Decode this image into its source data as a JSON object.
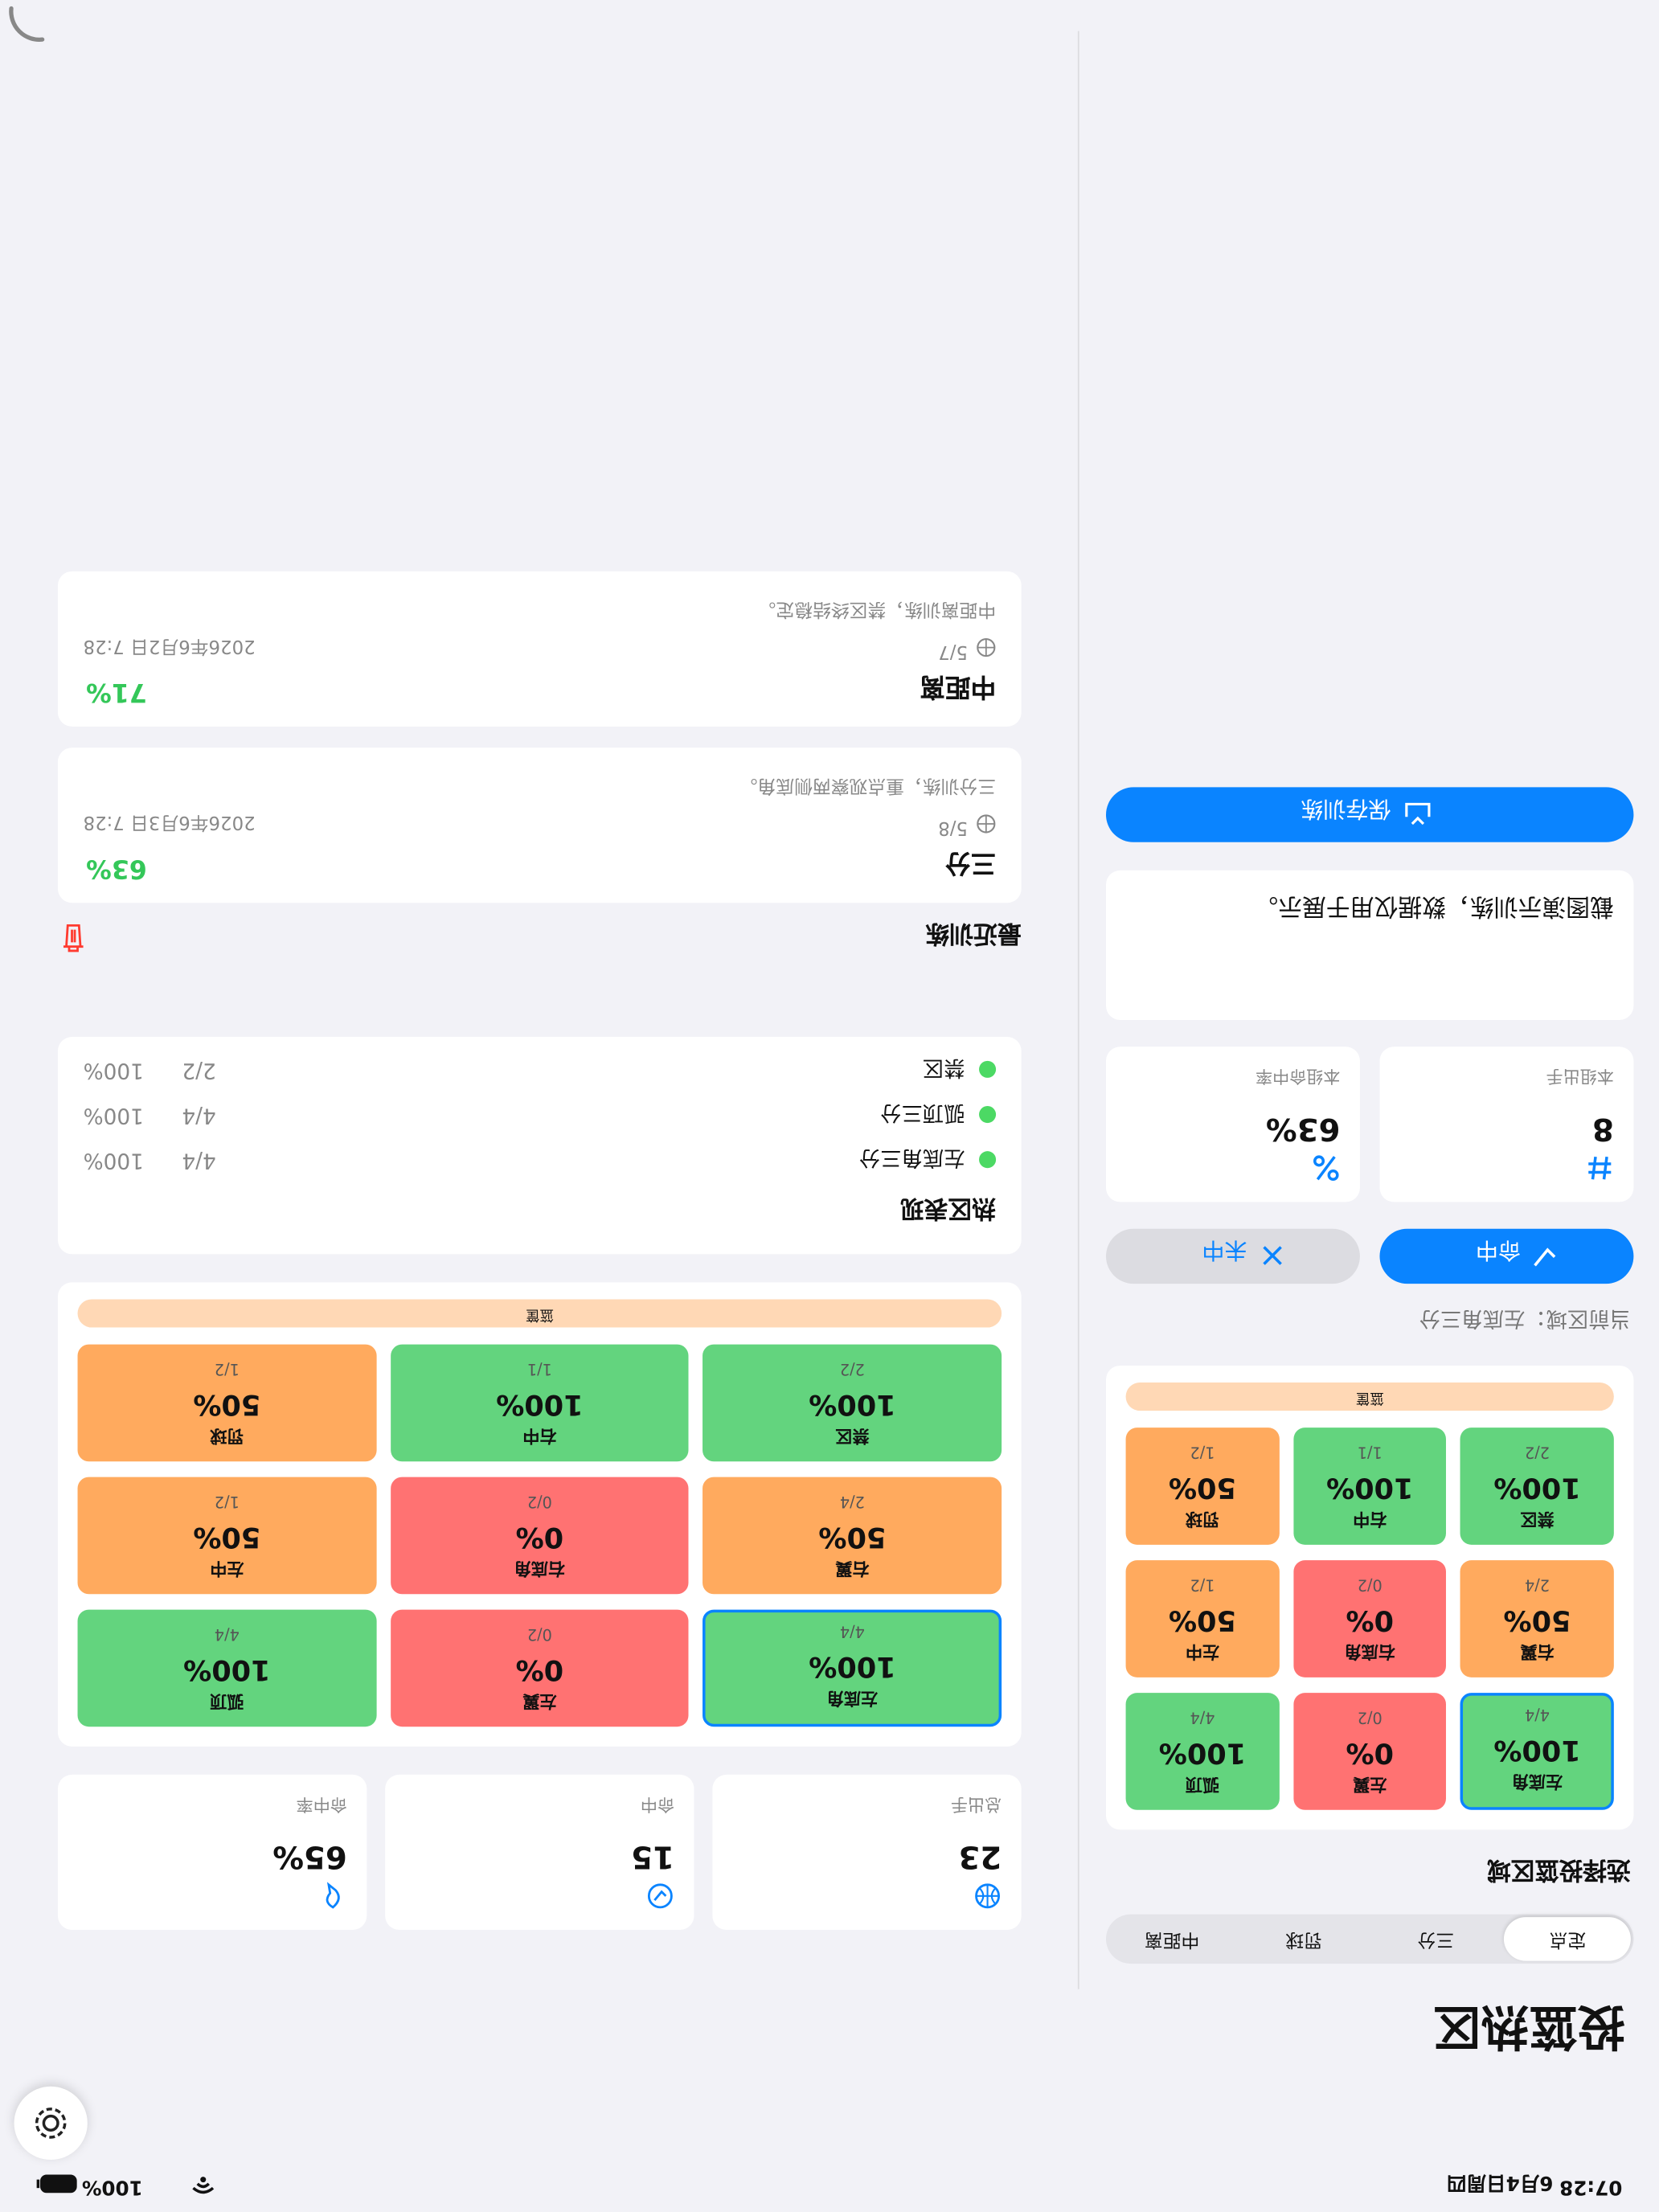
{
  "status_bar": {
    "time": "07:28",
    "date": "6月4日周四",
    "battery": "100%"
  },
  "trainer": {
    "title": "投篮热区",
    "modes": [
      "定点",
      "三分",
      "罚球",
      "中距离"
    ],
    "selected_mode": 0,
    "section": "选择投篮区域",
    "hoop": "篮筐",
    "zones": [
      {
        "name": "左底角",
        "rate": "100%",
        "made": "4/4",
        "color": "#63d47e"
      },
      {
        "name": "左翼",
        "rate": "0%",
        "made": "0/2",
        "color": "#ff7272"
      },
      {
        "name": "弧顶",
        "rate": "100%",
        "made": "4/4",
        "color": "#63d47e"
      },
      {
        "name": "右翼",
        "rate": "50%",
        "made": "2/4",
        "color": "#ffaa5e"
      },
      {
        "name": "右底角",
        "rate": "0%",
        "made": "0/2",
        "color": "#ff7272"
      },
      {
        "name": "左中",
        "rate": "50%",
        "made": "1/2",
        "color": "#ffaa5e"
      },
      {
        "name": "禁区",
        "rate": "100%",
        "made": "2/2",
        "color": "#63d47e"
      },
      {
        "name": "右中",
        "rate": "100%",
        "made": "1/1",
        "color": "#63d47e"
      },
      {
        "name": "罚球",
        "rate": "50%",
        "made": "1/2",
        "color": "#ffaa5e"
      }
    ],
    "selected_zone": 0,
    "current_zone": "当前区域：左底角三分",
    "made_button": "命中",
    "miss_button": "未中",
    "set_shots": {
      "label": "本组出手",
      "value": "8"
    },
    "set_rate": {
      "label": "本组命中率",
      "value": "63%"
    },
    "note": "截图演示训练，数据仅用于展示。",
    "save_button": "保存训练"
  },
  "summary": {
    "stats": [
      {
        "label": "总出手",
        "value": "23"
      },
      {
        "label": "命中",
        "value": "15"
      },
      {
        "label": "命中率",
        "value": "65%"
      }
    ],
    "hot_title": "热区表现",
    "hot_zones": [
      {
        "name": "左底角三分",
        "made": "4/4",
        "rate": "100%"
      },
      {
        "name": "弧顶三分",
        "made": "4/4",
        "rate": "100%"
      },
      {
        "name": "禁区",
        "made": "2/2",
        "rate": "100%"
      }
    ],
    "recent_title": "最近训练",
    "sessions": [
      {
        "mode": "三分",
        "rate": "63%",
        "made": "5/8",
        "date": "2026年6月3日 7:28",
        "note": "三分训练，重点观察两侧底角。"
      },
      {
        "mode": "中距离",
        "rate": "71%",
        "made": "5/7",
        "date": "2026年6月2日 7:28",
        "note": "中距离训练，禁区终结稳定。"
      }
    ]
  }
}
